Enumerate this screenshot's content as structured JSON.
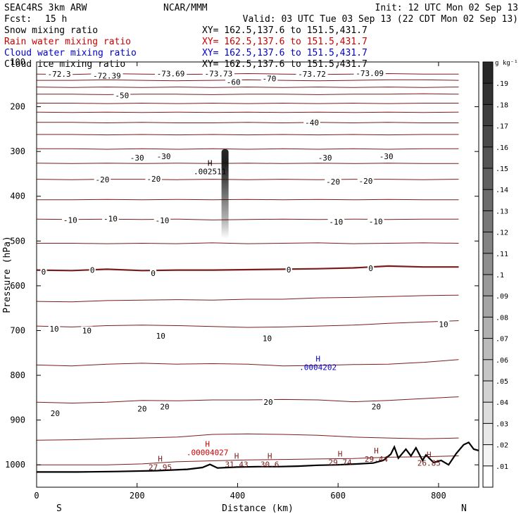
{
  "header": {
    "model": "SEAC4RS  3km ARW",
    "org": "NCAR/MMM",
    "init": "Init: 12 UTC Mon 02 Sep 13",
    "fcst_label": "Fcst:",
    "fcst_value": "15 h",
    "valid": "Valid: 03 UTC Tue 03 Sep 13 (22 CDT Mon 02 Sep 13)",
    "fields": [
      {
        "name": "Snow mixing ratio",
        "xy": "XY= 162.5,137.6 to 151.5,431.7",
        "color": "#000000"
      },
      {
        "name": "Rain water mixing ratio",
        "xy": "XY= 162.5,137.6 to 151.5,431.7",
        "color": "#cc0000"
      },
      {
        "name": "Cloud water mixing ratio",
        "xy": "XY= 162.5,137.6 to 151.5,431.7",
        "color": "#0000cc"
      },
      {
        "name": "Cloud ice mixing ratio",
        "xy": "XY= 162.5,137.6 to 151.5,431.7",
        "color": "#000000"
      }
    ]
  },
  "chart_data": {
    "type": "cross-section contour",
    "xlabel": "Distance (km)",
    "ylabel": "Pressure (hPa)",
    "xlim": [
      0,
      880
    ],
    "ylim": [
      1050,
      100
    ],
    "x_ticks": [
      0,
      200,
      400,
      600,
      800
    ],
    "y_ticks": [
      100,
      200,
      300,
      400,
      500,
      600,
      700,
      800,
      900,
      1000
    ],
    "y_tick_labels": [
      "100",
      "200",
      "300",
      "400",
      "500",
      "600",
      "700",
      "800",
      "900",
      "1000"
    ],
    "endpoint_labels": {
      "left": "S",
      "right": "N"
    },
    "isotherm_color": "#7a1c1c",
    "terrain_color": "#000000",
    "isotherms": [
      {
        "temp": -72,
        "p": [
          127,
          128,
          126,
          127,
          128,
          127,
          126,
          127,
          128,
          127,
          126,
          127,
          127
        ]
      },
      {
        "temp": -65,
        "p": [
          141,
          141,
          140,
          141,
          142,
          141,
          140,
          141,
          142,
          141,
          140,
          140,
          141
        ]
      },
      {
        "temp": -60,
        "p": [
          156,
          157,
          156,
          157,
          156,
          157,
          156,
          157,
          156,
          157,
          156,
          157,
          156
        ]
      },
      {
        "temp": -55,
        "p": [
          172,
          172,
          173,
          172,
          172,
          173,
          172,
          172,
          173,
          172,
          172,
          171,
          172
        ]
      },
      {
        "temp": -50,
        "p": [
          192,
          192,
          193,
          192,
          193,
          192,
          193,
          192,
          193,
          192,
          193,
          192,
          192
        ]
      },
      {
        "temp": -45,
        "p": [
          212,
          213,
          212,
          213,
          212,
          213,
          212,
          213,
          212,
          213,
          212,
          213,
          212
        ]
      },
      {
        "temp": -40,
        "p": [
          235,
          235,
          236,
          235,
          236,
          236,
          235,
          236,
          235,
          236,
          235,
          236,
          236
        ]
      },
      {
        "temp": -35,
        "p": [
          262,
          262,
          263,
          262,
          263,
          262,
          263,
          262,
          263,
          262,
          263,
          262,
          262
        ]
      },
      {
        "temp": -30,
        "p": [
          294,
          294,
          295,
          294,
          295,
          294,
          295,
          294,
          295,
          294,
          295,
          294,
          294
        ]
      },
      {
        "temp": -25,
        "p": [
          326,
          327,
          326,
          327,
          326,
          327,
          326,
          327,
          326,
          327,
          326,
          327,
          327
        ]
      },
      {
        "temp": -20,
        "p": [
          362,
          363,
          362,
          362,
          363,
          362,
          363,
          362,
          363,
          362,
          362,
          363,
          362
        ]
      },
      {
        "temp": -15,
        "p": [
          408,
          408,
          407,
          408,
          407,
          408,
          407,
          408,
          407,
          408,
          407,
          408,
          408
        ]
      },
      {
        "temp": -10,
        "p": [
          451,
          452,
          451,
          452,
          451,
          453,
          452,
          451,
          452,
          451,
          452,
          451,
          451
        ]
      },
      {
        "temp": -5,
        "p": [
          505,
          505,
          506,
          505,
          506,
          504,
          506,
          505,
          504,
          506,
          505,
          504,
          505
        ]
      },
      {
        "temp": 0,
        "p": [
          565,
          566,
          563,
          566,
          565,
          565,
          564,
          563,
          562,
          560,
          556,
          558,
          558
        ]
      },
      {
        "temp": 5,
        "p": [
          635,
          636,
          633,
          632,
          631,
          632,
          630,
          630,
          627,
          626,
          624,
          622,
          621
        ]
      },
      {
        "temp": 10,
        "p": [
          690,
          692,
          689,
          688,
          689,
          691,
          693,
          692,
          690,
          688,
          684,
          681,
          678
        ]
      },
      {
        "temp": 15,
        "p": [
          777,
          779,
          775,
          773,
          775,
          774,
          775,
          779,
          778,
          776,
          775,
          771,
          765
        ]
      },
      {
        "temp": 20,
        "p": [
          860,
          862,
          860,
          856,
          857,
          855,
          855,
          854,
          855,
          859,
          856,
          852,
          848
        ]
      },
      {
        "temp": 25,
        "p": [
          945,
          944,
          942,
          940,
          938,
          932,
          931,
          932,
          934,
          938,
          940,
          942,
          940
        ]
      },
      {
        "temp": 30,
        "p": [
          1000,
          1000,
          1000,
          998,
          993,
          991,
          989,
          988,
          987,
          986,
          983,
          982,
          980
        ]
      }
    ],
    "isotherm_x": [
      0,
      70,
      140,
      210,
      280,
      350,
      420,
      490,
      560,
      630,
      700,
      770,
      840
    ],
    "contour_labels": [
      {
        "text": "-72.3",
        "x": 45,
        "p": 127
      },
      {
        "text": "-72.39",
        "x": 140,
        "p": 131
      },
      {
        "text": "-73.69",
        "x": 267,
        "p": 126
      },
      {
        "text": "-73.73",
        "x": 362,
        "p": 126
      },
      {
        "text": "-70",
        "x": 463,
        "p": 137
      },
      {
        "text": "-73.72",
        "x": 548,
        "p": 127
      },
      {
        "text": "-73.09",
        "x": 663,
        "p": 125
      },
      {
        "text": "-40",
        "x": 548,
        "p": 235
      },
      {
        "text": "-30",
        "x": 200,
        "p": 314
      },
      {
        "text": "-30",
        "x": 253,
        "p": 311
      },
      {
        "text": "-30",
        "x": 574,
        "p": 314
      },
      {
        "text": "-30",
        "x": 696,
        "p": 311
      },
      {
        "text": "-20",
        "x": 131,
        "p": 363
      },
      {
        "text": "-20",
        "x": 233,
        "p": 361
      },
      {
        "text": "-20",
        "x": 590,
        "p": 367
      },
      {
        "text": "-20",
        "x": 655,
        "p": 366
      },
      {
        "text": "-10",
        "x": 67,
        "p": 453
      },
      {
        "text": "-10",
        "x": 147,
        "p": 450
      },
      {
        "text": "-10",
        "x": 250,
        "p": 454
      },
      {
        "text": "-10",
        "x": 596,
        "p": 457
      },
      {
        "text": "-10",
        "x": 675,
        "p": 456
      },
      {
        "text": "0",
        "x": 14,
        "p": 569
      },
      {
        "text": "0",
        "x": 111,
        "p": 565
      },
      {
        "text": "0",
        "x": 232,
        "p": 572
      },
      {
        "text": "0",
        "x": 502,
        "p": 564
      },
      {
        "text": "0",
        "x": 665,
        "p": 561
      },
      {
        "text": "10",
        "x": 35,
        "p": 696
      },
      {
        "text": "10",
        "x": 100,
        "p": 700
      },
      {
        "text": "10",
        "x": 247,
        "p": 712
      },
      {
        "text": "10",
        "x": 459,
        "p": 717
      },
      {
        "text": "10",
        "x": 810,
        "p": 686
      },
      {
        "text": "20",
        "x": 37,
        "p": 885
      },
      {
        "text": "20",
        "x": 210,
        "p": 875
      },
      {
        "text": "20",
        "x": 255,
        "p": 870
      },
      {
        "text": "20",
        "x": 461,
        "p": 860
      },
      {
        "text": "20",
        "x": 676,
        "p": 870
      },
      {
        "text": "-50",
        "x": 170,
        "p": 175
      },
      {
        "text": "-60",
        "x": 392,
        "p": 145
      }
    ],
    "extrema_labels": [
      {
        "mark": "H",
        "value": ".002511",
        "x": 345,
        "p": 348,
        "color": "#000000"
      },
      {
        "mark": "H",
        "value": ".0004202",
        "x": 560,
        "p": 785,
        "color": "#0000cc"
      },
      {
        "mark": "H",
        "value": ".00004027",
        "x": 340,
        "p": 975,
        "color": "#cc0000"
      },
      {
        "mark": "H",
        "value": "27.95",
        "x": 246,
        "p": 1008,
        "color": "#7a1c1c"
      },
      {
        "mark": "H",
        "value": "31.43",
        "x": 398,
        "p": 1002,
        "color": "#7a1c1c"
      },
      {
        "mark": "H",
        "value": "30.6",
        "x": 464,
        "p": 1002,
        "color": "#7a1c1c"
      },
      {
        "mark": "H",
        "value": "29.74",
        "x": 604,
        "p": 997,
        "color": "#7a1c1c"
      },
      {
        "mark": "H",
        "value": "29.44",
        "x": 676,
        "p": 990,
        "color": "#7a1c1c"
      },
      {
        "mark": "H",
        "value": "26.85",
        "x": 781,
        "p": 999,
        "color": "#7a1c1c"
      }
    ],
    "terrain": {
      "x": [
        0,
        80,
        160,
        240,
        300,
        330,
        345,
        360,
        400,
        440,
        480,
        520,
        560,
        600,
        640,
        670,
        690,
        705,
        712,
        720,
        735,
        745,
        755,
        768,
        775,
        790,
        805,
        820,
        835,
        850,
        860,
        870,
        880
      ],
      "p": [
        1016,
        1016,
        1015,
        1013,
        1010,
        1006,
        999,
        1007,
        1005,
        1004,
        1004,
        1003,
        1001,
        1000,
        998,
        996,
        990,
        976,
        960,
        985,
        965,
        980,
        962,
        990,
        978,
        995,
        990,
        1000,
        975,
        955,
        950,
        965,
        968
      ]
    },
    "snow_plume": {
      "x_center": 375,
      "p_top": 295,
      "p_bottom": 495,
      "peak": 0.18
    },
    "colorbar": {
      "unit": "g kg⁻¹",
      "ticks": [
        ".01",
        ".02",
        ".03",
        ".04",
        ".05",
        ".06",
        ".07",
        ".08",
        ".09",
        ".1",
        ".11",
        ".12",
        ".13",
        ".14",
        ".15",
        ".16",
        ".17",
        ".18",
        ".19"
      ]
    }
  }
}
